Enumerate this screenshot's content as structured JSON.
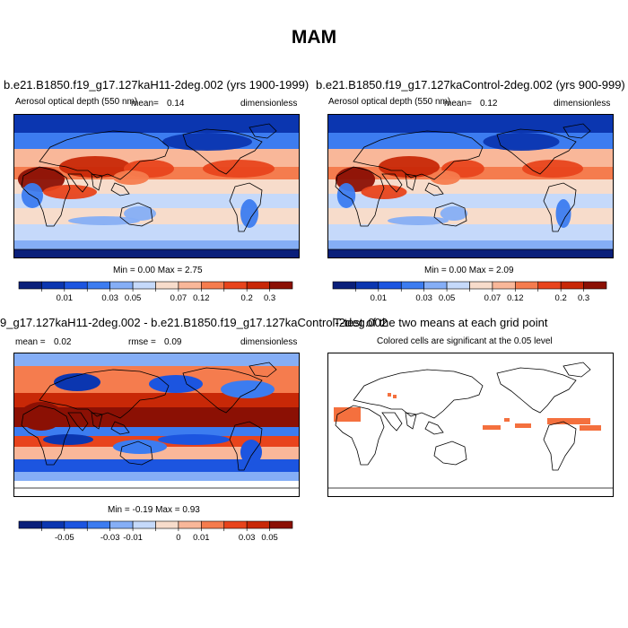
{
  "season_title": "MAM",
  "panels": [
    {
      "title": "b.e21.B1850.f19_g17.127kaH11-2deg.002 (yrs 1900-1999)",
      "left_label": "Aerosol optical depth (550 nm)",
      "mean_label": "mean=",
      "mean_value": "0.14",
      "units": "dimensionless",
      "minmax": "Min =  0.00 Max =  2.75"
    },
    {
      "title": "b.e21.B1850.f19_g17.127kaControl-2deg.002 (yrs 900-999)",
      "left_label": "Aerosol optical depth (550 nm)",
      "mean_label": "mean=",
      "mean_value": "0.12",
      "units": "dimensionless",
      "minmax": "Min =  0.00 Max =  2.09"
    },
    {
      "title": "9_g17.127kaH11-2deg.002 - b.e21.B1850.f19_g17.127kaControl-2deg.002",
      "mean_label": "mean =",
      "mean_value": "0.02",
      "rmse_label": "rmse =",
      "rmse_value": "0.09",
      "units": "dimensionless",
      "minmax": "Min = -0.19 Max =  0.93"
    },
    {
      "title": "T-test of the two means at each grid point",
      "subtitle": "Colored cells are significant at the 0.05 level"
    }
  ],
  "colors": {
    "scale": [
      "#0a1f7a",
      "#0b36b0",
      "#1c55e0",
      "#3c7cf0",
      "#85aef6",
      "#c5d9fa",
      "#f7dccb",
      "#f9b799",
      "#f57c4e",
      "#e8441c",
      "#c82807",
      "#8b1004"
    ],
    "significance": "#f4703e",
    "land_line": "#000000"
  },
  "chart_data": [
    {
      "type": "heatmap",
      "name": "aod-h11",
      "title": "b.e21.B1850.f19_g17.127kaH11-2deg.002 (yrs 1900-1999)",
      "variable": "Aerosol optical depth (550 nm)",
      "mean": 0.14,
      "min": 0.0,
      "max": 2.75,
      "levels": [
        "0.01",
        "0.03",
        "0.05",
        "0.07",
        "0.12",
        "0.2",
        "0.3"
      ]
    },
    {
      "type": "heatmap",
      "name": "aod-control",
      "title": "b.e21.B1850.f19_g17.127kaControl-2deg.002 (yrs 900-999)",
      "variable": "Aerosol optical depth (550 nm)",
      "mean": 0.12,
      "min": 0.0,
      "max": 2.09,
      "levels": [
        "0.01",
        "0.03",
        "0.05",
        "0.07",
        "0.12",
        "0.2",
        "0.3"
      ]
    },
    {
      "type": "heatmap",
      "name": "aod-difference",
      "mean": 0.02,
      "rmse": 0.09,
      "min": -0.19,
      "max": 0.93,
      "levels": [
        "-0.05",
        "-0.03",
        "-0.01",
        "0",
        "0.01",
        "0.03",
        "0.05"
      ]
    },
    {
      "type": "heatmap",
      "name": "t-test",
      "title": "T-test of the two means at each grid point"
    }
  ]
}
